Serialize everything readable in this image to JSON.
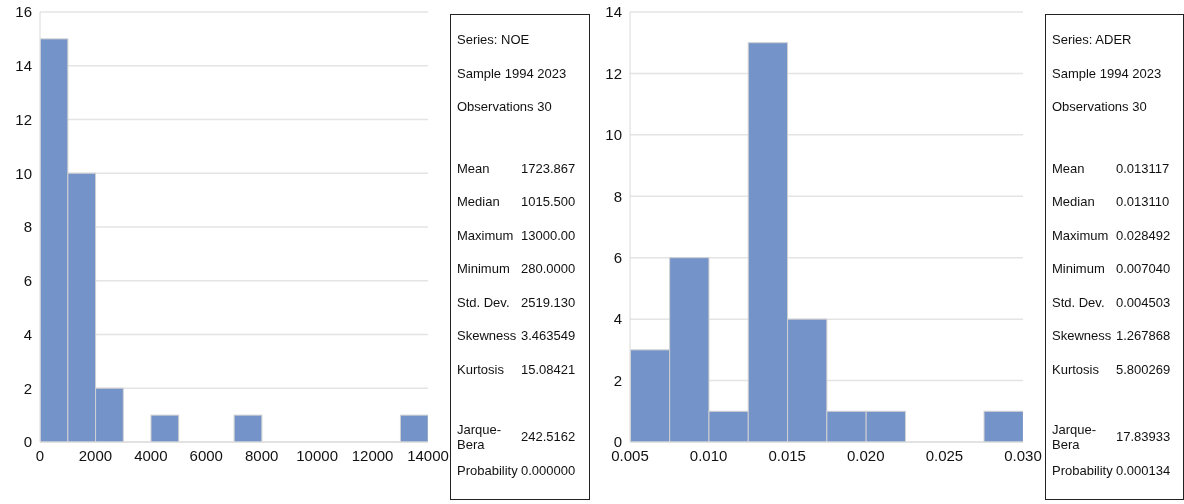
{
  "chart_data": [
    {
      "type": "histogram",
      "bins": [
        0,
        1000,
        2000,
        3000,
        4000,
        5000,
        6000,
        7000,
        8000,
        9000,
        10000,
        11000,
        12000,
        13000,
        14000
      ],
      "values": [
        15,
        10,
        2,
        0,
        1,
        0,
        0,
        1,
        0,
        0,
        0,
        0,
        0,
        1
      ],
      "color": "#7393c9",
      "xlim": [
        0,
        14000
      ],
      "xticks": [
        0,
        2000,
        4000,
        6000,
        8000,
        10000,
        12000,
        14000
      ],
      "ylim": [
        0,
        16
      ],
      "yticks": [
        0,
        2,
        4,
        6,
        8,
        10,
        12,
        14,
        16
      ],
      "grid": "y"
    },
    {
      "type": "other",
      "annotations": [
        "Series: NOE",
        "Sample 1994 2023",
        "Observations 30"
      ],
      "categories": [
        "Mean",
        "Median",
        "Maximum",
        "Minimum",
        "Std. Dev.",
        "Skewness",
        "Kurtosis",
        "Jarque-Bera",
        "Probability"
      ],
      "value_labels": [
        "1723.867",
        "1015.500",
        "13000.00",
        "280.0000",
        "2519.130",
        "3.463549",
        "15.08421",
        "242.5162",
        "0.000000"
      ]
    },
    {
      "type": "histogram",
      "bins": [
        0.005,
        0.0075,
        0.01,
        0.0125,
        0.015,
        0.0175,
        0.02,
        0.0225,
        0.025,
        0.0275,
        0.03
      ],
      "values": [
        3,
        6,
        1,
        13,
        4,
        1,
        1,
        0,
        0,
        1
      ],
      "color": "#7393c9",
      "xlim": [
        0.005,
        0.03
      ],
      "xticks": [
        {
          "value": 0.005,
          "label": "0.005"
        },
        {
          "value": 0.01,
          "label": "0.010"
        },
        {
          "value": 0.015,
          "label": "0.015"
        },
        {
          "value": 0.02,
          "label": "0.020"
        },
        {
          "value": 0.025,
          "label": "0.025"
        },
        {
          "value": 0.03,
          "label": "0.030"
        }
      ],
      "ylim": [
        0,
        14
      ],
      "yticks": [
        0,
        2,
        4,
        6,
        8,
        10,
        12,
        14
      ],
      "grid": "y"
    },
    {
      "type": "other",
      "annotations": [
        "Series: ADER",
        "Sample 1994 2023",
        "Observations 30"
      ],
      "categories": [
        "Mean",
        "Median",
        "Maximum",
        "Minimum",
        "Std. Dev.",
        "Skewness",
        "Kurtosis",
        "Jarque-Bera",
        "Probability"
      ],
      "value_labels": [
        "0.013117",
        "0.013110",
        "0.028492",
        "0.007040",
        "0.004503",
        "1.267868",
        "5.800269",
        "17.83933",
        "0.000134"
      ]
    }
  ]
}
